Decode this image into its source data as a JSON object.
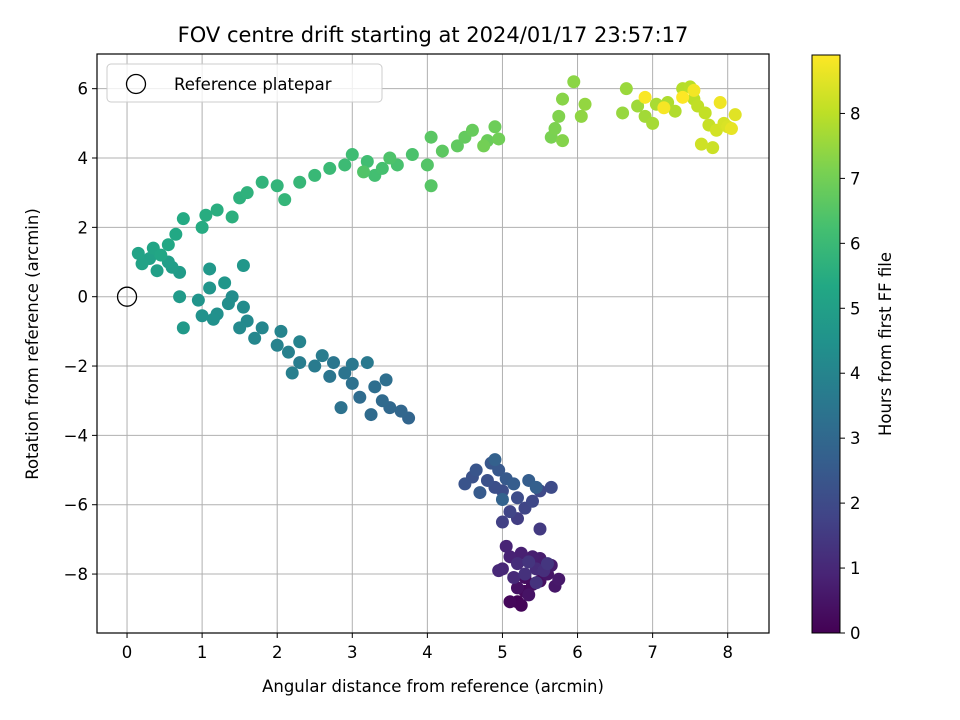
{
  "chart_data": {
    "type": "scatter",
    "title": "FOV centre drift starting at 2024/01/17 23:57:17",
    "xlabel": "Angular distance from reference (arcmin)",
    "ylabel": "Rotation from reference (arcmin)",
    "colorbar_label": "Hours from first FF file",
    "xlim": [
      -0.4,
      8.55
    ],
    "ylim": [
      -9.7,
      7.0
    ],
    "colorbar_range": [
      0,
      8.9
    ],
    "colormap": "viridis",
    "x_ticks": [
      0,
      1,
      2,
      3,
      4,
      5,
      6,
      7,
      8
    ],
    "y_ticks": [
      -8,
      -6,
      -4,
      -2,
      0,
      2,
      4,
      6
    ],
    "colorbar_ticks": [
      0,
      1,
      2,
      3,
      4,
      5,
      6,
      7,
      8
    ],
    "x_tick_labels": [
      "0",
      "1",
      "2",
      "3",
      "4",
      "5",
      "6",
      "7",
      "8"
    ],
    "y_tick_labels": [
      "−8",
      "−6",
      "−4",
      "−2",
      "0",
      "2",
      "4",
      "6"
    ],
    "colorbar_tick_labels": [
      "0",
      "1",
      "2",
      "3",
      "4",
      "5",
      "6",
      "7",
      "8"
    ],
    "grid": true,
    "legend_position": "top-left",
    "legend": [
      {
        "label": "Reference platepar",
        "marker": "open-circle",
        "x": 0,
        "y": 0
      }
    ],
    "series": [
      {
        "points": [
          [
            5.2,
            -8.8,
            0.05
          ],
          [
            5.25,
            -8.9,
            0.1
          ],
          [
            5.1,
            -8.8,
            0.15
          ],
          [
            5.3,
            -8.5,
            0.2
          ],
          [
            5.4,
            -8.3,
            0.25
          ],
          [
            5.3,
            -8.1,
            0.3
          ],
          [
            5.5,
            -8.2,
            0.35
          ],
          [
            5.2,
            -8.4,
            0.4
          ],
          [
            5.35,
            -8.6,
            0.45
          ],
          [
            5.6,
            -8.0,
            0.5
          ],
          [
            5.7,
            -8.35,
            0.55
          ],
          [
            5.75,
            -8.15,
            0.6
          ],
          [
            5.65,
            -7.75,
            0.65
          ],
          [
            5.5,
            -7.55,
            0.7
          ],
          [
            5.4,
            -7.5,
            0.75
          ],
          [
            5.25,
            -7.4,
            0.8
          ],
          [
            5.1,
            -7.5,
            0.85
          ],
          [
            5.05,
            -7.2,
            0.9
          ],
          [
            5.0,
            -7.85,
            0.95
          ],
          [
            4.95,
            -7.9,
            1.0
          ],
          [
            5.15,
            -8.1,
            1.05
          ],
          [
            5.45,
            -7.85,
            1.1
          ],
          [
            5.2,
            -7.7,
            1.15
          ],
          [
            5.55,
            -7.9,
            1.2
          ],
          [
            5.3,
            -8.0,
            1.25
          ],
          [
            5.45,
            -8.25,
            1.3
          ],
          [
            5.35,
            -7.65,
            1.35
          ],
          [
            5.6,
            -7.7,
            1.4
          ],
          [
            5.5,
            -6.7,
            1.5
          ],
          [
            5.2,
            -6.4,
            1.6
          ],
          [
            5.0,
            -6.5,
            1.7
          ],
          [
            5.1,
            -6.2,
            1.8
          ],
          [
            5.3,
            -6.1,
            1.85
          ],
          [
            5.4,
            -5.9,
            1.9
          ],
          [
            5.5,
            -5.6,
            1.95
          ],
          [
            5.65,
            -5.5,
            2.0
          ],
          [
            5.2,
            -5.8,
            2.05
          ],
          [
            5.0,
            -5.6,
            2.1
          ],
          [
            4.9,
            -5.5,
            2.15
          ],
          [
            4.8,
            -5.3,
            2.2
          ],
          [
            4.6,
            -5.2,
            2.25
          ],
          [
            4.5,
            -5.4,
            2.3
          ],
          [
            4.65,
            -5.0,
            2.35
          ],
          [
            4.85,
            -4.8,
            2.4
          ],
          [
            4.95,
            -5.0,
            2.45
          ],
          [
            5.05,
            -5.25,
            2.5
          ],
          [
            4.7,
            -5.65,
            2.55
          ],
          [
            5.15,
            -5.4,
            2.6
          ],
          [
            5.35,
            -5.3,
            2.65
          ],
          [
            5.45,
            -5.5,
            2.7
          ],
          [
            4.9,
            -4.7,
            2.75
          ],
          [
            5.0,
            -5.85,
            2.8
          ],
          [
            3.75,
            -3.5,
            2.9
          ],
          [
            3.65,
            -3.3,
            2.95
          ],
          [
            3.5,
            -3.2,
            3.0
          ],
          [
            3.4,
            -3.0,
            3.05
          ],
          [
            3.25,
            -3.4,
            3.1
          ],
          [
            3.1,
            -2.9,
            3.15
          ],
          [
            3.3,
            -2.6,
            3.2
          ],
          [
            3.45,
            -2.4,
            3.25
          ],
          [
            3.0,
            -2.5,
            3.3
          ],
          [
            2.85,
            -3.2,
            3.35
          ],
          [
            2.9,
            -2.2,
            3.4
          ],
          [
            2.7,
            -2.3,
            3.45
          ],
          [
            2.75,
            -1.9,
            3.5
          ],
          [
            3.0,
            -1.95,
            3.55
          ],
          [
            3.2,
            -1.9,
            3.6
          ],
          [
            2.5,
            -2.0,
            3.65
          ],
          [
            2.6,
            -1.7,
            3.7
          ],
          [
            2.3,
            -1.9,
            3.75
          ],
          [
            2.2,
            -2.2,
            3.8
          ],
          [
            2.15,
            -1.6,
            3.85
          ],
          [
            2.0,
            -1.4,
            3.9
          ],
          [
            2.3,
            -1.3,
            3.95
          ],
          [
            2.05,
            -1.0,
            4.0
          ],
          [
            1.8,
            -0.9,
            4.05
          ],
          [
            1.7,
            -1.2,
            4.1
          ],
          [
            1.6,
            -0.7,
            4.15
          ],
          [
            1.5,
            -0.9,
            4.2
          ],
          [
            1.55,
            -0.3,
            4.25
          ],
          [
            1.4,
            0.0,
            4.3
          ],
          [
            1.35,
            -0.2,
            4.35
          ],
          [
            1.2,
            -0.5,
            4.4
          ],
          [
            1.15,
            -0.65,
            4.45
          ],
          [
            1.0,
            -0.55,
            4.5
          ],
          [
            0.95,
            -0.1,
            4.55
          ],
          [
            1.1,
            0.25,
            4.6
          ],
          [
            1.3,
            0.4,
            4.65
          ],
          [
            1.55,
            0.9,
            4.7
          ],
          [
            1.1,
            0.8,
            4.72
          ],
          [
            0.75,
            -0.9,
            4.75
          ],
          [
            0.7,
            0.0,
            4.8
          ],
          [
            0.7,
            0.7,
            4.85
          ],
          [
            0.6,
            0.85,
            4.9
          ],
          [
            0.55,
            1.0,
            4.95
          ],
          [
            0.4,
            0.75,
            5.0
          ],
          [
            0.3,
            1.1,
            5.05
          ],
          [
            0.2,
            0.95,
            5.1
          ],
          [
            0.15,
            1.25,
            5.15
          ],
          [
            0.35,
            1.4,
            5.2
          ],
          [
            0.45,
            1.2,
            5.25
          ],
          [
            0.55,
            1.5,
            5.3
          ],
          [
            0.65,
            1.8,
            5.35
          ],
          [
            0.75,
            2.25,
            5.4
          ],
          [
            1.0,
            2.0,
            5.45
          ],
          [
            1.05,
            2.35,
            5.5
          ],
          [
            1.2,
            2.5,
            5.55
          ],
          [
            1.4,
            2.3,
            5.6
          ],
          [
            1.5,
            2.85,
            5.65
          ],
          [
            1.6,
            3.0,
            5.7
          ],
          [
            1.8,
            3.3,
            5.75
          ],
          [
            2.0,
            3.2,
            5.8
          ],
          [
            2.1,
            2.8,
            5.85
          ],
          [
            2.3,
            3.3,
            5.9
          ],
          [
            2.5,
            3.5,
            5.95
          ],
          [
            2.7,
            3.7,
            6.0
          ],
          [
            2.9,
            3.8,
            6.05
          ],
          [
            3.0,
            4.1,
            6.1
          ],
          [
            3.2,
            3.9,
            6.15
          ],
          [
            3.3,
            3.5,
            6.2
          ],
          [
            3.4,
            3.7,
            6.25
          ],
          [
            3.6,
            3.8,
            6.3
          ],
          [
            3.8,
            4.1,
            6.35
          ],
          [
            3.5,
            4.0,
            6.4
          ],
          [
            3.15,
            3.6,
            6.45
          ],
          [
            4.0,
            3.8,
            6.5
          ],
          [
            4.05,
            3.2,
            6.55
          ],
          [
            4.05,
            4.6,
            6.6
          ],
          [
            4.2,
            4.2,
            6.65
          ],
          [
            4.4,
            4.35,
            6.7
          ],
          [
            4.5,
            4.6,
            6.75
          ],
          [
            4.6,
            4.8,
            6.8
          ],
          [
            4.8,
            4.5,
            6.85
          ],
          [
            4.9,
            4.9,
            6.9
          ],
          [
            4.95,
            4.55,
            6.95
          ],
          [
            4.75,
            4.35,
            7.0
          ],
          [
            5.65,
            4.6,
            7.1
          ],
          [
            5.7,
            4.85,
            7.15
          ],
          [
            5.75,
            5.2,
            7.2
          ],
          [
            5.8,
            4.5,
            7.25
          ],
          [
            5.8,
            5.7,
            7.3
          ],
          [
            5.95,
            6.2,
            7.35
          ],
          [
            6.05,
            5.2,
            7.4
          ],
          [
            6.1,
            5.55,
            7.45
          ],
          [
            6.6,
            5.3,
            7.5
          ],
          [
            6.65,
            6.0,
            7.55
          ],
          [
            6.8,
            5.5,
            7.6
          ],
          [
            6.9,
            5.2,
            7.65
          ],
          [
            7.0,
            5.0,
            7.7
          ],
          [
            7.05,
            5.55,
            7.75
          ],
          [
            7.2,
            5.6,
            7.8
          ],
          [
            7.3,
            5.35,
            7.85
          ],
          [
            7.4,
            6.0,
            7.9
          ],
          [
            7.5,
            6.05,
            7.95
          ],
          [
            7.55,
            5.7,
            8.0
          ],
          [
            7.6,
            5.5,
            8.05
          ],
          [
            7.7,
            5.3,
            8.1
          ],
          [
            7.75,
            4.95,
            8.15
          ],
          [
            7.8,
            4.3,
            8.2
          ],
          [
            7.65,
            4.4,
            8.25
          ],
          [
            7.85,
            4.8,
            8.3
          ],
          [
            7.95,
            5.0,
            8.35
          ],
          [
            8.0,
            4.9,
            8.4
          ],
          [
            8.1,
            5.25,
            8.5
          ],
          [
            8.05,
            4.85,
            8.6
          ],
          [
            7.9,
            5.6,
            8.7
          ],
          [
            7.55,
            5.95,
            8.75
          ],
          [
            7.15,
            5.45,
            8.8
          ],
          [
            6.9,
            5.75,
            8.85
          ],
          [
            7.4,
            5.75,
            8.9
          ]
        ]
      }
    ]
  }
}
